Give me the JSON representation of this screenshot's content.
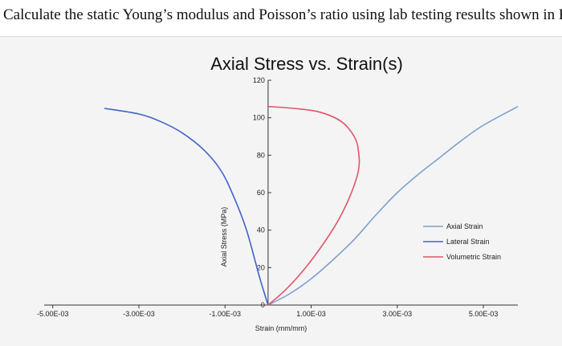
{
  "question": "Calculate the static Young’s modulus and Poisson’s ratio using lab testing results shown in Fig",
  "chart_data": {
    "type": "line",
    "title": "Axial Stress vs. Strain(s)",
    "xlabel": "Strain (mm/mm)",
    "ylabel": "Axial Stress (MPa)",
    "xlim": [
      -0.0052,
      0.0058
    ],
    "ylim": [
      0,
      120
    ],
    "x_ticks": [
      -0.005,
      -0.003,
      -0.001,
      0.001,
      0.003,
      0.005
    ],
    "x_tick_labels": [
      "-5.00E-03",
      "-3.00E-03",
      "-1.00E-03",
      "1.00E-03",
      "3.00E-03",
      "5.00E-03"
    ],
    "y_ticks": [
      0,
      20,
      40,
      60,
      80,
      100,
      120
    ],
    "y_tick_labels": [
      "0",
      "20",
      "40",
      "60",
      "80",
      "100",
      "120"
    ],
    "legend_position": "right",
    "series": [
      {
        "name": "Axial Strain",
        "color": "#7f9fd0",
        "x": [
          0.0,
          0.0005,
          0.001,
          0.0015,
          0.002,
          0.0025,
          0.003,
          0.0035,
          0.004,
          0.0045,
          0.005,
          0.0058
        ],
        "y": [
          0,
          6,
          14,
          24,
          35,
          48,
          60,
          70,
          79,
          88,
          96,
          106
        ]
      },
      {
        "name": "Lateral Strain",
        "color": "#3f63c8",
        "x": [
          0.0,
          -0.0002,
          -0.0005,
          -0.0008,
          -0.0011,
          -0.0015,
          -0.002,
          -0.0025,
          -0.003,
          -0.0038
        ],
        "y": [
          0,
          15,
          40,
          58,
          72,
          83,
          92,
          98,
          102,
          105
        ]
      },
      {
        "name": "Volumetric Strain",
        "color": "#e0556a",
        "x": [
          0.0,
          0.0004,
          0.0008,
          0.0012,
          0.0016,
          0.0019,
          0.0021,
          0.0021,
          0.002,
          0.0017,
          0.0012,
          0.0006,
          0.0
        ],
        "y": [
          0,
          8,
          18,
          30,
          44,
          58,
          72,
          82,
          90,
          98,
          103,
          105,
          106
        ]
      }
    ]
  }
}
